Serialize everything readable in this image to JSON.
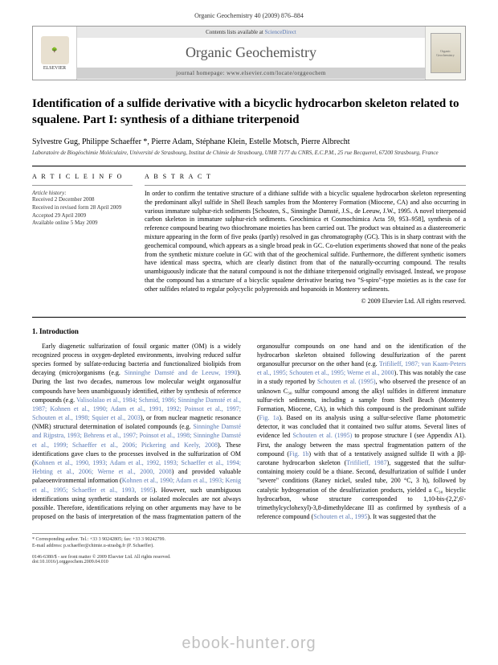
{
  "header": {
    "running_head": "Organic Geochemistry 40 (2009) 876–884"
  },
  "banner": {
    "publisher": "ELSEVIER",
    "contents_text": "Contents lists available at ",
    "contents_link": "ScienceDirect",
    "journal_name": "Organic Geochemistry",
    "homepage_text": "journal homepage: www.elsevier.com/locate/orggeochem",
    "cover_label": "Organic Geochemistry"
  },
  "article": {
    "title": "Identification of a sulfide derivative with a bicyclic hydrocarbon skeleton related to squalene. Part I: synthesis of a dithiane triterpenoid",
    "authors": "Sylvestre Gug, Philippe Schaeffer *, Pierre Adam, Stéphane Klein, Estelle Motsch, Pierre Albrecht",
    "affiliation": "Laboratoire de Biogéochimie Moléculaire, Université de Strasbourg, Institut de Chimie de Strasbourg, UMR 7177 du CNRS, E.C.P.M., 25 rue Becquerel, 67200 Strasbourg, France"
  },
  "article_info": {
    "heading": "A R T I C L E   I N F O",
    "history_label": "Article history:",
    "received": "Received 2 December 2008",
    "revised": "Received in revised form 28 April 2009",
    "accepted": "Accepted 29 April 2009",
    "available": "Available online 5 May 2009"
  },
  "abstract": {
    "heading": "A B S T R A C T",
    "text": "In order to confirm the tentative structure of a dithiane sulfide with a bicyclic squalene hydrocarbon skeleton representing the predominant alkyl sulfide in Shell Beach samples from the Monterey Formation (Miocene, CA) and also occurring in various immature sulphur-rich sediments [Schouten, S., Sinninghe Damsté, J.S., de Leeuw, J.W., 1995. A novel triterpenoid carbon skeleton in immature sulphur-rich sediments. Geochimica et Cosmochimica Acta 59, 953–958], synthesis of a reference compound bearing two thiochromane moieties has been carried out. The product was obtained as a diastereomeric mixture appearing in the form of five peaks (partly) resolved in gas chromatography (GC). This is in sharp contrast with the geochemical compound, which appears as a single broad peak in GC. Co-elution experiments showed that none of the peaks from the synthetic mixture coelute in GC with that of the geochemical sulfide. Furthermore, the different synthetic isomers have identical mass spectra, which are clearly distinct from that of the naturally-occurring compound. The results unambiguously indicate that the natural compound is not the dithiane triterpenoid originally envisaged. Instead, we propose that the compound has a structure of a bicyclic squalene derivative bearing two \"S-spiro\"-type moieties as is the case for other sulfides related to regular polycyclic polyprenoids and hopanoids in Monterey sediments.",
    "copyright": "© 2009 Elsevier Ltd. All rights reserved."
  },
  "section1": {
    "heading": "1. Introduction",
    "para1_part1": "Early diagenetic sulfurization of fossil organic matter (OM) is a widely recognized process in oxygen-depleted environments, involving reduced sulfur species formed by sulfate-reducing bacteria and functionalized biolipids from decaying (micro)organisms (e.g. ",
    "ref1": "Sinninghe Damsté and de Leeuw, 1990",
    "para1_part2": "). During the last two decades, numerous low molecular weight organosulfur compounds have been unambiguously identified, either by synthesis of reference compounds (e.g. ",
    "ref2": "Valisolalao et al., 1984; Schmid, 1986; Sinninghe Damsté et al., 1987; Kohnen et al., 1990; Adam et al., 1991, 1992; Poinsot et al., 1997; Schouten et al., 1998; Squier et al., 2003",
    "para1_part3": "), or from nuclear magnetic resonance (NMR) structural determination of isolated compounds (e.g. ",
    "ref3": "Sinninghe Damsté and Rijpstra, 1993; Behrens et al., 1997; Poinsot et al., 1998; Sinninghe Damsté et al., 1999; Schaeffer et al., 2006; Pickering and Keely, 2008",
    "para1_part4": "). These identifications gave clues to the processes involved in the sulfurization of OM (",
    "ref4": "Kohnen et al., 1990, 1993; Adam et al., 1992, 1993; Schaeffer et al., 1994; Hebting et al., 2006; Werne et al., 2000, 2008",
    "para1_part5": ") and provided valuable palaeoenvironmental information (",
    "ref5": "Kohnen et al., 1990; Adam et al., 1993; Kenig et al., 1995; Schaeffer et al., 1993, 1995",
    "para1_part6": "). However, such unambiguous identifications using synthetic standards or isolated mole",
    "para2_part1": "cules are not always possible. Therefore, identifications relying on other arguments may have to be proposed on the basis of interpretation of the mass fragmentation pattern of the organosulfur compounds on one hand and on the identification of the hydrocarbon skeleton obtained following desulfurization of the parent organosulfur precursor on the other hand (e.g. ",
    "ref6": "Trifilieff, 1987; van Kaam-Peters et al., 1995; Schouten et al., 1995; Werne et al., 2000",
    "para2_part2": "). This was notably the case in a study reported by ",
    "ref7": "Schouten et al. (1995)",
    "para2_part3": ", who observed the presence of an unknown C₃₀ sulfur compound among the alkyl sulfides in different immature sulfur-rich sediments, including a sample from Shell Beach (Monterey Formation, Miocene, CA), in which this compound is the predominant sulfide (",
    "ref8": "Fig. 1a",
    "para2_part4": "). Based on its analysis using a sulfur-selective flame photometric detector, it was concluded that it contained two sulfur atoms. Several lines of evidence led ",
    "ref9": "Schouten et al. (1995)",
    "para2_part5": " to propose structure I (see Appendix A1). First, the analogy between the mass spectral fragmentation pattern of the compound (",
    "ref10": "Fig. 1b",
    "para2_part6": ") with that of a tentatively assigned sulfide II with a ββ-carotane hydrocarbon skeleton (",
    "ref11": "Trifilieff, 1987",
    "para2_part7": "), suggested that the sulfur-containing moiety could be a thiane. Second, desulfurization of sulfide I under \"severe\" conditions (Raney nickel, sealed tube, 200 °C, 3 h), followed by catalytic hydrogenation of the desulfurization products, yielded a C₃₀ bicyclic hydrocarbon, whose structure corresponded to 1,10-bis-(2,2',6'-trimethylcyclohexyl)-3,8-dimethyldecane III as confirmed by synthesis of a reference compound (",
    "ref12": "Schouten et al., 1995",
    "para2_part8": "). It was suggested that the"
  },
  "footer": {
    "corresponding": "* Corresponding author. Tel.: +33 3 90242805; fax: +33 3 90242799.",
    "email": "E-mail address: p.schaeffer@chimie.u-strasbg.fr (P. Schaeffer).",
    "issn": "0146-6380/$ - see front matter © 2009 Elsevier Ltd. All rights reserved.",
    "doi": "doi:10.1016/j.orggeochem.2009.04.010"
  },
  "watermark": "ebook-hunter.org"
}
